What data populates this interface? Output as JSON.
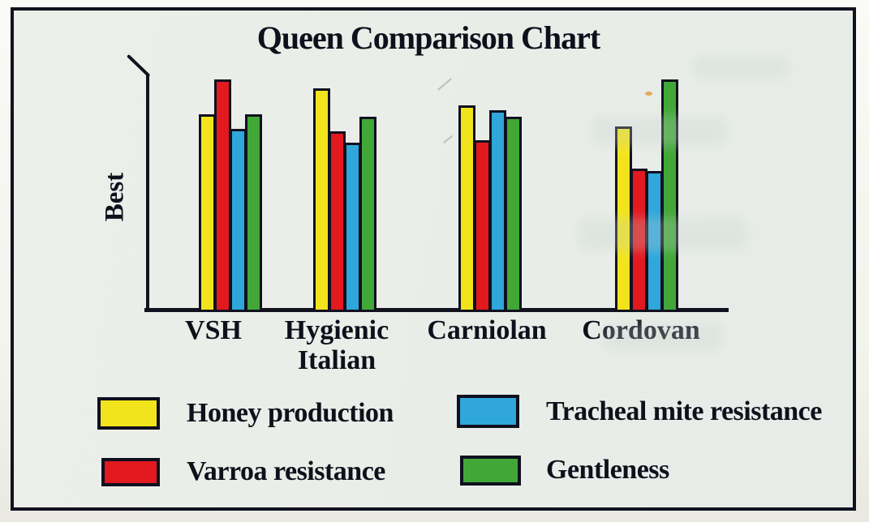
{
  "chart_data": {
    "type": "bar",
    "title": "Queen Comparison Chart",
    "xlabel": "",
    "ylabel": "Best",
    "ylim": [
      0,
      100
    ],
    "y_axis_note": "qualitative scale - no numeric ticks, 'Best' at top of axis",
    "grid": false,
    "legend_position": "bottom, two columns",
    "categories": [
      "VSH",
      "Hygienic Italian",
      "Carniolan",
      "Cordovan"
    ],
    "tick_label_lines": [
      [
        "VSH"
      ],
      [
        "Hygienic",
        "Italian"
      ],
      [
        "Carniolan"
      ],
      [
        "Cordovan"
      ]
    ],
    "series": [
      {
        "name": "Honey production",
        "color": "#f2e41c",
        "values": [
          84,
          95,
          88,
          79
        ]
      },
      {
        "name": "Varroa resistance",
        "color": "#e2191f",
        "values": [
          99,
          77,
          73,
          61
        ]
      },
      {
        "name": "Tracheal mite resistance",
        "color": "#2fa7da",
        "values": [
          78,
          72,
          86,
          60
        ]
      },
      {
        "name": "Gentleness",
        "color": "#41a838",
        "values": [
          84,
          83,
          83,
          99
        ]
      }
    ]
  },
  "legend": {
    "items": [
      {
        "label": "Honey production",
        "color": "#f2e41c"
      },
      {
        "label": "Varroa resistance",
        "color": "#e2191f"
      },
      {
        "label": "Tracheal mite resistance",
        "color": "#2fa7da"
      },
      {
        "label": "Gentleness",
        "color": "#41a838"
      }
    ]
  },
  "colors": {
    "axis_and_text": "#12121f",
    "paper_inside_frame": "#eaede8",
    "paper_outside_frame": "#f4f5f0"
  }
}
